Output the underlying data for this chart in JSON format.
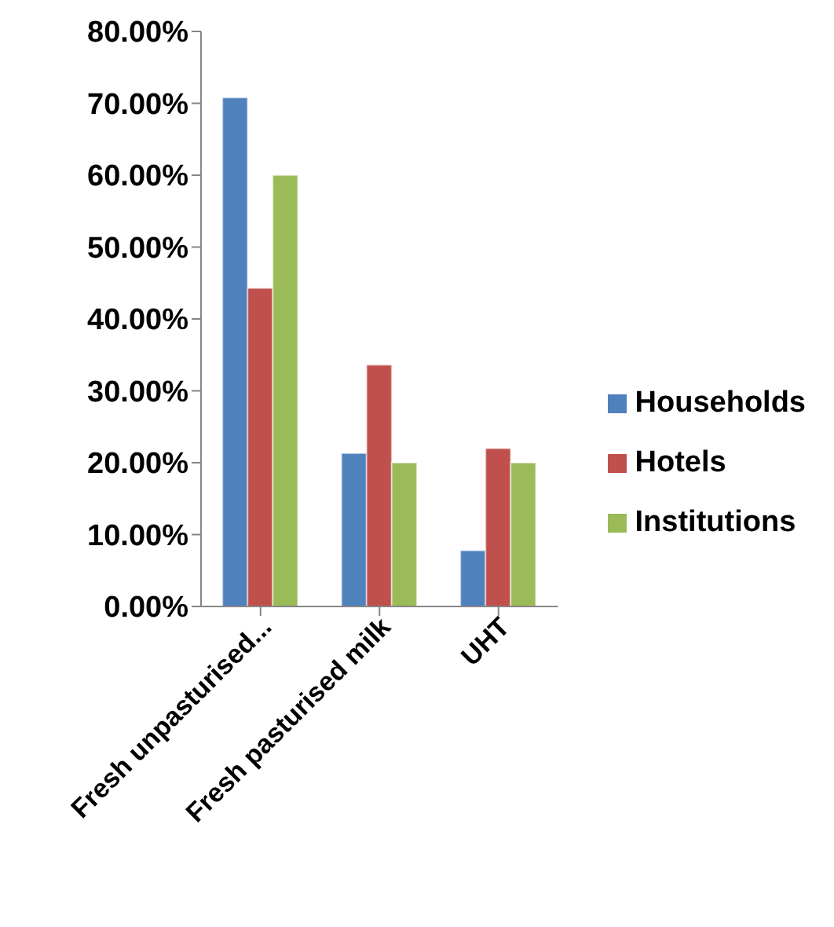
{
  "chart_data": {
    "type": "bar",
    "categories": [
      "Fresh unpasturised...",
      "Fresh pasturised milk",
      "UHT"
    ],
    "series": [
      {
        "name": "Households",
        "color": "#4f81bd",
        "values": [
          70.8,
          21.3,
          7.8
        ]
      },
      {
        "name": "Hotels",
        "color": "#c0504d",
        "values": [
          44.3,
          33.6,
          22
        ]
      },
      {
        "name": "Institutions",
        "color": "#9bbb59",
        "values": [
          60,
          20,
          20
        ]
      }
    ],
    "ylim": [
      0,
      80
    ],
    "yticks": [
      {
        "value": 0,
        "label": "0.00%"
      },
      {
        "value": 10,
        "label": "10.00%"
      },
      {
        "value": 20,
        "label": "20.00%"
      },
      {
        "value": 30,
        "label": "30.00%"
      },
      {
        "value": 40,
        "label": "40.00%"
      },
      {
        "value": 50,
        "label": "50.00%"
      },
      {
        "value": 60,
        "label": "60.00%"
      },
      {
        "value": 70,
        "label": "70.00%"
      },
      {
        "value": 80,
        "label": "80.00%"
      }
    ],
    "grid": false,
    "legend": "right"
  }
}
